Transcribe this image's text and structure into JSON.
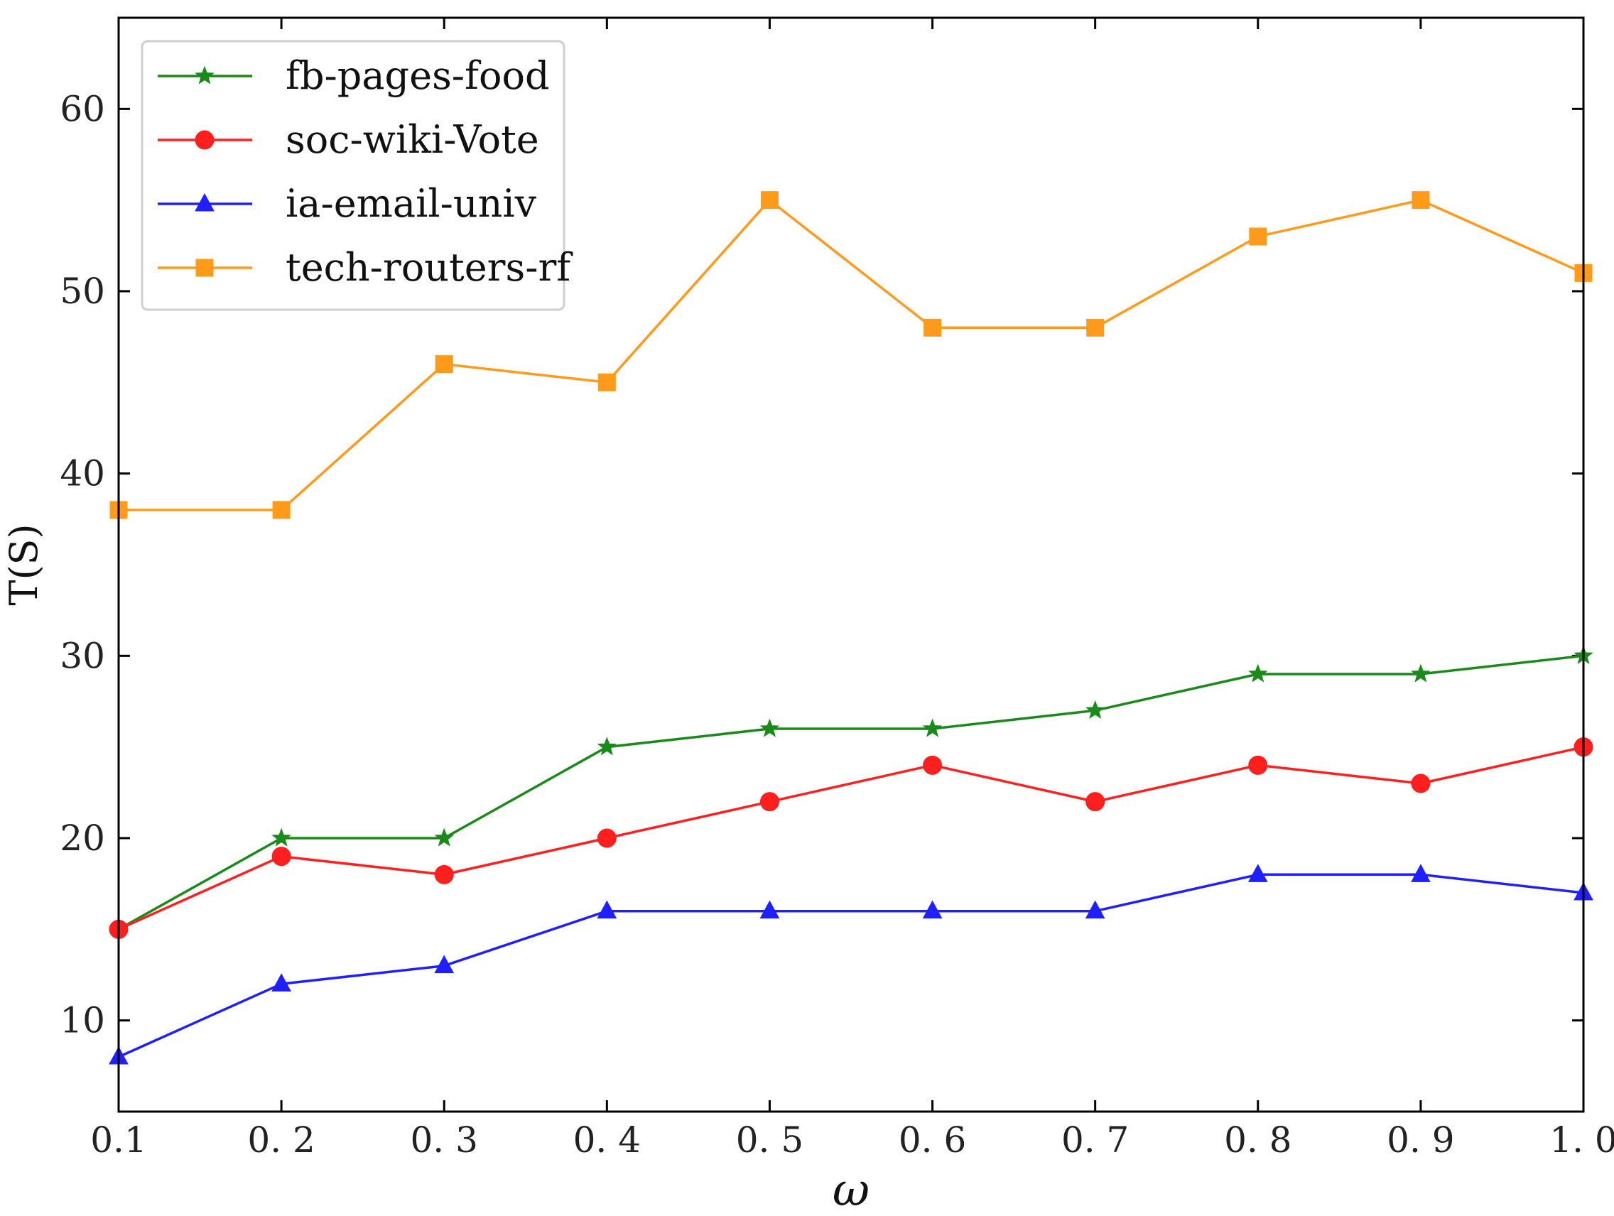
{
  "chart_data": {
    "type": "line",
    "title": "",
    "xlabel": "ω",
    "ylabel": "T(S)",
    "x": [
      0.1,
      0.2,
      0.3,
      0.4,
      0.5,
      0.6,
      0.7,
      0.8,
      0.9,
      1.0
    ],
    "x_tick_labels": [
      "0.1",
      "0. 2",
      "0. 3",
      "0. 4",
      "0. 5",
      "0. 6",
      "0. 7",
      "0. 8",
      "0. 9",
      "1. 0"
    ],
    "y_ticks": [
      10,
      20,
      30,
      40,
      50,
      60
    ],
    "xlim": [
      0.1,
      1.0
    ],
    "ylim": [
      5,
      65
    ],
    "legend_position": "top-left",
    "series": [
      {
        "name": "fb-pages-food",
        "color": "#1a8a1a",
        "marker": "star",
        "values": [
          15,
          20,
          20,
          25,
          26,
          26,
          27,
          29,
          29,
          30
        ]
      },
      {
        "name": "soc-wiki-Vote",
        "color": "#ff1f1f",
        "marker": "circle",
        "values": [
          15,
          19,
          18,
          20,
          22,
          24,
          22,
          24,
          23,
          25
        ]
      },
      {
        "name": "ia-email-univ",
        "color": "#1f1fff",
        "marker": "triangle",
        "values": [
          8,
          12,
          13,
          16,
          16,
          16,
          16,
          18,
          18,
          17
        ]
      },
      {
        "name": "tech-routers-rf",
        "color": "#ff9a1a",
        "marker": "square",
        "values": [
          38,
          38,
          46,
          45,
          55,
          48,
          48,
          53,
          55,
          51
        ]
      }
    ]
  }
}
